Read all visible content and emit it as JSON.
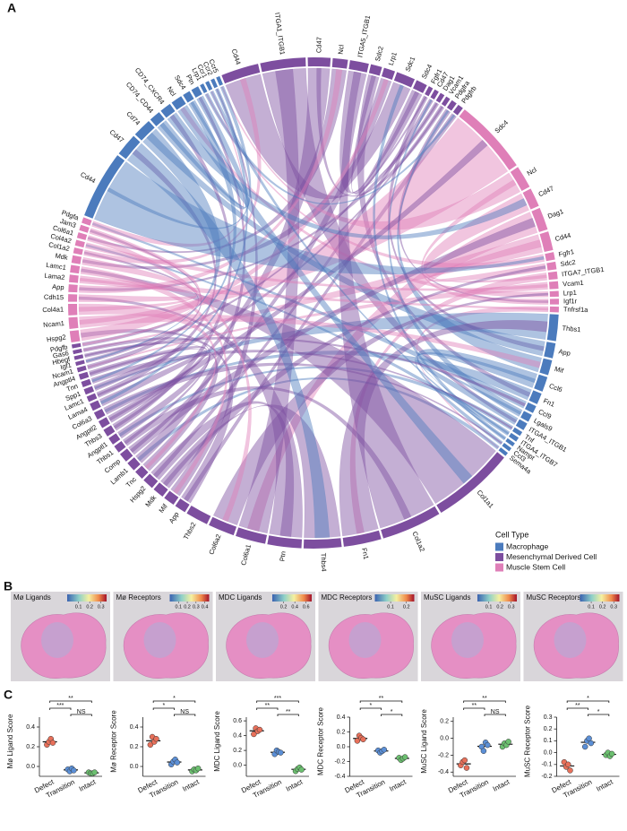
{
  "panel_labels": [
    "A",
    "B",
    "C"
  ],
  "chart_data": [
    {
      "type": "chord",
      "legend_title": "Cell Type",
      "legend": [
        {
          "name": "Macrophage",
          "color": "#4b7bbd"
        },
        {
          "name": "Mesenchymal Derived Cell",
          "color": "#7d4e9f"
        },
        {
          "name": "Muscle Stem Cell",
          "color": "#df7fb8"
        }
      ],
      "segments": [
        {
          "label": "Cd44",
          "group": 1,
          "size": 10
        },
        {
          "label": "ITGA1_ITGB1",
          "group": 1,
          "size": 12
        },
        {
          "label": "Cd47",
          "group": 1,
          "size": 6
        },
        {
          "label": "Ncl",
          "group": 1,
          "size": 4
        },
        {
          "label": "ITGA5_ITGB1",
          "group": 1,
          "size": 5
        },
        {
          "label": "Sdc2",
          "group": 1,
          "size": 3
        },
        {
          "label": "Lrp1",
          "group": 1,
          "size": 3
        },
        {
          "label": "Sdc1",
          "group": 1,
          "size": 5
        },
        {
          "label": "Sdc4",
          "group": 1,
          "size": 3
        },
        {
          "label": "Fgfr1",
          "group": 1,
          "size": 1.2
        },
        {
          "label": "Cd47",
          "group": 1,
          "size": 1.2
        },
        {
          "label": "Dag1",
          "group": 1,
          "size": 1.2
        },
        {
          "label": "Vcam1",
          "group": 1,
          "size": 1.2
        },
        {
          "label": "Pdgfra",
          "group": 1,
          "size": 1.5
        },
        {
          "label": "Pdgfrb",
          "group": 1,
          "size": 1.5
        },
        {
          "label": "Sdc4",
          "group": 2,
          "size": 20
        },
        {
          "label": "Ncl",
          "group": 2,
          "size": 6
        },
        {
          "label": "Cd47",
          "group": 2,
          "size": 5
        },
        {
          "label": "Dag1",
          "group": 2,
          "size": 6
        },
        {
          "label": "Cd44",
          "group": 2,
          "size": 5
        },
        {
          "label": "Fgfr1",
          "group": 2,
          "size": 2
        },
        {
          "label": "Sdc2",
          "group": 2,
          "size": 2
        },
        {
          "label": "ITGA7_ITGB1",
          "group": 2,
          "size": 2
        },
        {
          "label": "Vcam1",
          "group": 2,
          "size": 2
        },
        {
          "label": "Lrp1",
          "group": 2,
          "size": 1.5
        },
        {
          "label": "Igf1r",
          "group": 2,
          "size": 1.5
        },
        {
          "label": "Tnfrsf1a",
          "group": 2,
          "size": 1.5
        },
        {
          "label": "Thbs1",
          "group": 0,
          "size": 7
        },
        {
          "label": "App",
          "group": 0,
          "size": 4
        },
        {
          "label": "Mif",
          "group": 0,
          "size": 4
        },
        {
          "label": "Ccl6",
          "group": 0,
          "size": 4
        },
        {
          "label": "Fn1",
          "group": 0,
          "size": 3
        },
        {
          "label": "Ccl9",
          "group": 0,
          "size": 2
        },
        {
          "label": "Lgals9",
          "group": 0,
          "size": 2
        },
        {
          "label": "ITGA4_ITGB1",
          "group": 0,
          "size": 2
        },
        {
          "label": "Tnf",
          "group": 0,
          "size": 1.2
        },
        {
          "label": "ITGA4_ITGB7",
          "group": 0,
          "size": 1.2
        },
        {
          "label": "Nampt",
          "group": 0,
          "size": 1
        },
        {
          "label": "Ccl3",
          "group": 0,
          "size": 1
        },
        {
          "label": "Sema4a",
          "group": 0,
          "size": 1
        },
        {
          "label": "Col1a1",
          "group": 1,
          "size": 22
        },
        {
          "label": "Col1a2",
          "group": 1,
          "size": 16
        },
        {
          "label": "Fn1",
          "group": 1,
          "size": 10
        },
        {
          "label": "Thbs4",
          "group": 1,
          "size": 10
        },
        {
          "label": "Ptn",
          "group": 1,
          "size": 9
        },
        {
          "label": "Col6a1",
          "group": 1,
          "size": 8
        },
        {
          "label": "Col6a2",
          "group": 1,
          "size": 7
        },
        {
          "label": "Thbs2",
          "group": 1,
          "size": 6
        },
        {
          "label": "App",
          "group": 1,
          "size": 3
        },
        {
          "label": "Mif",
          "group": 1,
          "size": 3
        },
        {
          "label": "Mdk",
          "group": 1,
          "size": 3
        },
        {
          "label": "Hspg2",
          "group": 1,
          "size": 3
        },
        {
          "label": "Tnc",
          "group": 1,
          "size": 2.5
        },
        {
          "label": "Lamb1",
          "group": 1,
          "size": 2.5
        },
        {
          "label": "Comp",
          "group": 1,
          "size": 2.5
        },
        {
          "label": "Thbs1",
          "group": 1,
          "size": 2
        },
        {
          "label": "Angptl1",
          "group": 1,
          "size": 2
        },
        {
          "label": "Thbs3",
          "group": 1,
          "size": 2
        },
        {
          "label": "Angptl2",
          "group": 1,
          "size": 2
        },
        {
          "label": "Col6a3",
          "group": 1,
          "size": 2
        },
        {
          "label": "Lama4",
          "group": 1,
          "size": 2
        },
        {
          "label": "Lamc1",
          "group": 1,
          "size": 1.5
        },
        {
          "label": "Spp1",
          "group": 1,
          "size": 1.5
        },
        {
          "label": "Tnn",
          "group": 1,
          "size": 1.5
        },
        {
          "label": "Angptl4",
          "group": 1,
          "size": 1.5
        },
        {
          "label": "Ncam1",
          "group": 1,
          "size": 1.2
        },
        {
          "label": "Igf1",
          "group": 1,
          "size": 1
        },
        {
          "label": "Hbegf",
          "group": 1,
          "size": 1
        },
        {
          "label": "Gas6",
          "group": 1,
          "size": 1
        },
        {
          "label": "Pdgfb",
          "group": 1,
          "size": 1
        },
        {
          "label": "Hspg2",
          "group": 2,
          "size": 3
        },
        {
          "label": "Ncam1",
          "group": 2,
          "size": 3
        },
        {
          "label": "Col4a1",
          "group": 2,
          "size": 3
        },
        {
          "label": "Cdh15",
          "group": 2,
          "size": 2
        },
        {
          "label": "App",
          "group": 2,
          "size": 2
        },
        {
          "label": "Lama2",
          "group": 2,
          "size": 2
        },
        {
          "label": "Lamc1",
          "group": 2,
          "size": 2
        },
        {
          "label": "Mdk",
          "group": 2,
          "size": 2
        },
        {
          "label": "Col1a2",
          "group": 2,
          "size": 1.5
        },
        {
          "label": "Col4a2",
          "group": 2,
          "size": 1.5
        },
        {
          "label": "Col6a1",
          "group": 2,
          "size": 1.5
        },
        {
          "label": "Jam3",
          "group": 2,
          "size": 1.5
        },
        {
          "label": "Pdgfa",
          "group": 2,
          "size": 1.5
        },
        {
          "label": "Cd44",
          "group": 0,
          "size": 18
        },
        {
          "label": "Cd47",
          "group": 0,
          "size": 6
        },
        {
          "label": "Cd74",
          "group": 0,
          "size": 5
        },
        {
          "label": "CD74_CD44",
          "group": 0,
          "size": 3
        },
        {
          "label": "CD74_CXCR4",
          "group": 0,
          "size": 3
        },
        {
          "label": "Ncl",
          "group": 0,
          "size": 3
        },
        {
          "label": "Sdc4",
          "group": 0,
          "size": 2
        },
        {
          "label": "Ptn",
          "group": 0,
          "size": 2
        },
        {
          "label": "Lrp1",
          "group": 0,
          "size": 1
        },
        {
          "label": "Ccr1",
          "group": 0,
          "size": 1
        },
        {
          "label": "Ccr2",
          "group": 0,
          "size": 1
        },
        {
          "label": "Ccr5",
          "group": 0,
          "size": 1
        }
      ]
    },
    {
      "type": "spatial",
      "title": "Mø Ligands",
      "clim": [
        0,
        0.35
      ],
      "cticks": [
        0.1,
        0.2,
        0.3
      ]
    },
    {
      "type": "spatial",
      "title": "Mø Receptors",
      "clim": [
        0,
        0.45
      ],
      "cticks": [
        0.1,
        0.2,
        0.3,
        0.4
      ]
    },
    {
      "type": "spatial",
      "title": "MDC Ligands",
      "clim": [
        0,
        0.7
      ],
      "cticks": [
        0.2,
        0.4,
        0.6
      ]
    },
    {
      "type": "spatial",
      "title": "MDC Receptors",
      "clim": [
        0,
        0.25
      ],
      "cticks": [
        0.1,
        0.2
      ]
    },
    {
      "type": "spatial",
      "title": "MuSC Ligands",
      "clim": [
        0,
        0.35
      ],
      "cticks": [
        0.1,
        0.2,
        0.3
      ]
    },
    {
      "type": "spatial",
      "title": "MuSC Receptors",
      "clim": [
        0,
        0.35
      ],
      "cticks": [
        0.1,
        0.2,
        0.3
      ]
    },
    {
      "type": "dot",
      "ylabel": "Mø Ligand Score",
      "ylim": [
        -0.1,
        0.5
      ],
      "yticks": [
        {
          "value": 0,
          "label": "0.0"
        },
        0.2,
        0.4
      ],
      "series": [
        {
          "name": "Defect",
          "color": "#e8705a",
          "values": [
            0.22,
            0.25,
            0.28,
            0.24
          ],
          "mean": 0.25
        },
        {
          "name": "Transition",
          "color": "#5b8fd6",
          "values": [
            -0.03,
            -0.05,
            -0.02,
            -0.04
          ],
          "mean": -0.035
        },
        {
          "name": "Intact",
          "color": "#6cc070",
          "values": [
            -0.06,
            -0.07,
            -0.07,
            -0.06
          ],
          "mean": -0.065
        }
      ],
      "brackets": [
        {
          "label": "**",
          "between": [
            "Defect",
            "Intact"
          ]
        },
        {
          "label": "***",
          "between": [
            "Defect",
            "Transition"
          ]
        },
        {
          "label": "NS",
          "between": [
            "Transition",
            "Intact"
          ]
        }
      ]
    },
    {
      "type": "dot",
      "ylabel": "Mø Receptor Score",
      "ylim": [
        -0.1,
        0.5
      ],
      "yticks": [
        {
          "value": 0,
          "label": "0.0"
        },
        0.2,
        0.4
      ],
      "series": [
        {
          "name": "Defect",
          "color": "#e8705a",
          "values": [
            0.22,
            0.3,
            0.25,
            0.28
          ],
          "mean": 0.26
        },
        {
          "name": "Transition",
          "color": "#5b8fd6",
          "values": [
            0.02,
            0.05,
            0.07,
            0.04
          ],
          "mean": 0.045
        },
        {
          "name": "Intact",
          "color": "#6cc070",
          "values": [
            -0.05,
            -0.03,
            -0.04,
            -0.02
          ],
          "mean": -0.035
        }
      ],
      "brackets": [
        {
          "label": "*",
          "between": [
            "Defect",
            "Intact"
          ]
        },
        {
          "label": "*",
          "between": [
            "Defect",
            "Transition"
          ]
        },
        {
          "label": "NS",
          "between": [
            "Transition",
            "Intact"
          ]
        }
      ]
    },
    {
      "type": "dot",
      "ylabel": "MDC Ligand Score",
      "ylim": [
        -0.15,
        0.65
      ],
      "yticks": [
        {
          "value": 0,
          "label": "0.0"
        },
        0.2,
        0.4,
        0.6
      ],
      "series": [
        {
          "name": "Defect",
          "color": "#e8705a",
          "values": [
            0.42,
            0.5,
            0.46,
            0.48
          ],
          "mean": 0.465
        },
        {
          "name": "Transition",
          "color": "#5b8fd6",
          "values": [
            0.15,
            0.2,
            0.18,
            0.17
          ],
          "mean": 0.175
        },
        {
          "name": "Intact",
          "color": "#6cc070",
          "values": [
            -0.08,
            -0.05,
            -0.03,
            -0.06
          ],
          "mean": -0.055
        }
      ],
      "brackets": [
        {
          "label": "***",
          "between": [
            "Defect",
            "Intact"
          ]
        },
        {
          "label": "**",
          "between": [
            "Defect",
            "Transition"
          ]
        },
        {
          "label": "**",
          "between": [
            "Transition",
            "Intact"
          ]
        }
      ]
    },
    {
      "type": "dot",
      "ylabel": "MDC Receptor Score",
      "ylim": [
        -0.4,
        0.4
      ],
      "yticks": [
        -0.4,
        -0.2,
        {
          "value": 0,
          "label": "0.0"
        },
        0.2,
        0.4
      ],
      "series": [
        {
          "name": "Defect",
          "color": "#e8705a",
          "values": [
            0.08,
            0.15,
            0.12,
            0.1
          ],
          "mean": 0.1125
        },
        {
          "name": "Transition",
          "color": "#5b8fd6",
          "values": [
            -0.05,
            -0.08,
            -0.06,
            -0.04
          ],
          "mean": -0.0575
        },
        {
          "name": "Intact",
          "color": "#6cc070",
          "values": [
            -0.15,
            -0.18,
            -0.16,
            -0.14
          ],
          "mean": -0.1575
        }
      ],
      "brackets": [
        {
          "label": "**",
          "between": [
            "Defect",
            "Intact"
          ]
        },
        {
          "label": "*",
          "between": [
            "Defect",
            "Transition"
          ]
        },
        {
          "label": "*",
          "between": [
            "Transition",
            "Intact"
          ]
        }
      ]
    },
    {
      "type": "dot",
      "ylabel": "MuSC Ligand Score",
      "ylim": [
        -0.45,
        0.25
      ],
      "yticks": [
        -0.4,
        -0.2,
        {
          "value": 0,
          "label": "0.0"
        },
        0.2
      ],
      "series": [
        {
          "name": "Defect",
          "color": "#e8705a",
          "values": [
            -0.32,
            -0.28,
            -0.26,
            -0.35
          ],
          "mean": -0.3025
        },
        {
          "name": "Transition",
          "color": "#5b8fd6",
          "values": [
            -0.1,
            -0.15,
            -0.05,
            -0.08
          ],
          "mean": -0.095
        },
        {
          "name": "Intact",
          "color": "#6cc070",
          "values": [
            -0.1,
            -0.06,
            -0.08,
            -0.04
          ],
          "mean": -0.07
        }
      ],
      "brackets": [
        {
          "label": "**",
          "between": [
            "Defect",
            "Intact"
          ]
        },
        {
          "label": "**",
          "between": [
            "Defect",
            "Transition"
          ]
        },
        {
          "label": "NS",
          "between": [
            "Transition",
            "Intact"
          ]
        }
      ]
    },
    {
      "type": "dot",
      "ylabel": "MuSC Receptor Score",
      "ylim": [
        -0.2,
        0.3
      ],
      "yticks": [
        -0.2,
        -0.1,
        {
          "value": 0,
          "label": "0.0"
        },
        0.1,
        0.2,
        0.3
      ],
      "series": [
        {
          "name": "Defect",
          "color": "#e8705a",
          "values": [
            -0.08,
            -0.12,
            -0.1,
            -0.15
          ],
          "mean": -0.1125
        },
        {
          "name": "Transition",
          "color": "#5b8fd6",
          "values": [
            0.05,
            0.1,
            0.12,
            0.08
          ],
          "mean": 0.0875
        },
        {
          "name": "Intact",
          "color": "#6cc070",
          "values": [
            -0.02,
            0,
            -0.03,
            -0.01
          ],
          "mean": -0.015
        }
      ],
      "brackets": [
        {
          "label": "*",
          "between": [
            "Defect",
            "Intact"
          ]
        },
        {
          "label": "**",
          "between": [
            "Defect",
            "Transition"
          ]
        },
        {
          "label": "*",
          "between": [
            "Transition",
            "Intact"
          ]
        }
      ]
    }
  ]
}
